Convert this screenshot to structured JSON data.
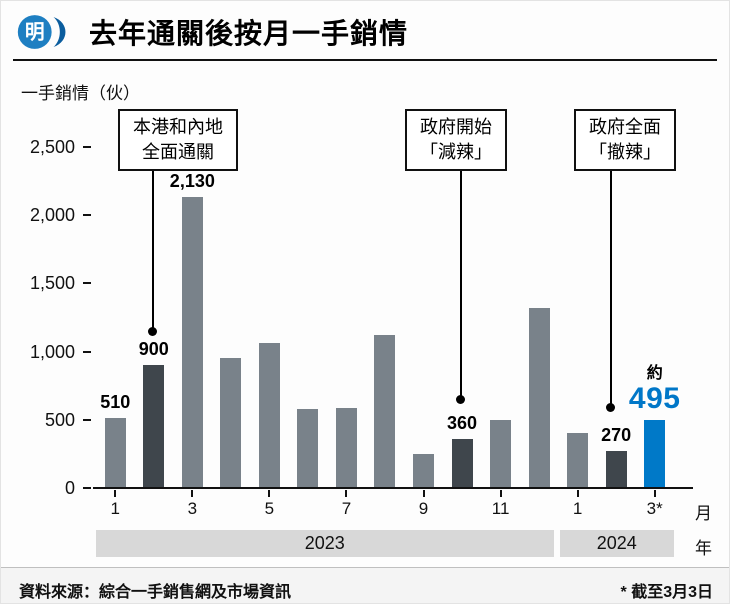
{
  "header": {
    "logo_text": "明",
    "title": "去年通關後按月一手銷情"
  },
  "colors": {
    "bar_normal": "#79828a",
    "bar_dark": "#3f464c",
    "bar_highlight": "#0079c8",
    "accent_blue": "#0077c8",
    "year_band": "#d8d8d8",
    "logo_blue": "#1e7fc2",
    "logo_swoosh": "#0b5d9e"
  },
  "chart_data": {
    "type": "bar",
    "title": "去年通關後按月一手銷情",
    "ylabel": "一手銷情（伙）",
    "x_unit": "月",
    "year_unit": "年",
    "ylim": [
      0,
      2500
    ],
    "yticks": [
      "0",
      "500",
      "1,000",
      "1,500",
      "2,000",
      "2,500"
    ],
    "categories": [
      "1",
      "2",
      "3",
      "4",
      "5",
      "6",
      "7",
      "8",
      "9",
      "10",
      "11",
      "12",
      "1",
      "2",
      "3*"
    ],
    "values": [
      510,
      900,
      2130,
      950,
      1060,
      580,
      590,
      1120,
      250,
      360,
      500,
      1320,
      400,
      270,
      495
    ],
    "bars": [
      {
        "month": "1",
        "value": 510,
        "style": "normal",
        "label": "510",
        "show_tick": true
      },
      {
        "month": "2",
        "value": 900,
        "style": "dark",
        "label": "900",
        "show_tick": false
      },
      {
        "month": "3",
        "value": 2130,
        "style": "normal",
        "label": "2,130",
        "show_tick": true
      },
      {
        "month": "4",
        "value": 950,
        "style": "normal",
        "label": "",
        "show_tick": false
      },
      {
        "month": "5",
        "value": 1060,
        "style": "normal",
        "label": "",
        "show_tick": true
      },
      {
        "month": "6",
        "value": 580,
        "style": "normal",
        "label": "",
        "show_tick": false
      },
      {
        "month": "7",
        "value": 590,
        "style": "normal",
        "label": "",
        "show_tick": true
      },
      {
        "month": "8",
        "value": 1120,
        "style": "normal",
        "label": "",
        "show_tick": false
      },
      {
        "month": "9",
        "value": 250,
        "style": "normal",
        "label": "",
        "show_tick": true
      },
      {
        "month": "10",
        "value": 360,
        "style": "dark",
        "label": "360",
        "show_tick": false
      },
      {
        "month": "11",
        "value": 500,
        "style": "normal",
        "label": "",
        "show_tick": true
      },
      {
        "month": "12",
        "value": 1320,
        "style": "normal",
        "label": "",
        "show_tick": false
      },
      {
        "month": "1",
        "value": 400,
        "style": "normal",
        "label": "",
        "show_tick": true
      },
      {
        "month": "2",
        "value": 270,
        "style": "dark",
        "label": "270",
        "show_tick": false
      },
      {
        "month": "3*",
        "value": 495,
        "style": "highlight",
        "label": "495",
        "label_prefix": "約",
        "show_tick": true
      }
    ],
    "years": [
      {
        "label": "2023",
        "span": [
          0,
          11
        ]
      },
      {
        "label": "2024",
        "span": [
          12,
          14
        ]
      }
    ],
    "annotations": [
      {
        "line1": "本港和內地",
        "line2": "全面通關",
        "target_index": 1
      },
      {
        "line1": "政府開始",
        "line2": "「減辣」",
        "target_index": 9
      },
      {
        "line1": "政府全面",
        "line2": "「撤辣」",
        "target_index": 13
      }
    ]
  },
  "footer": {
    "source": "資料來源：綜合一手銷售網及市場資訊",
    "note": "* 截至3月3日"
  }
}
